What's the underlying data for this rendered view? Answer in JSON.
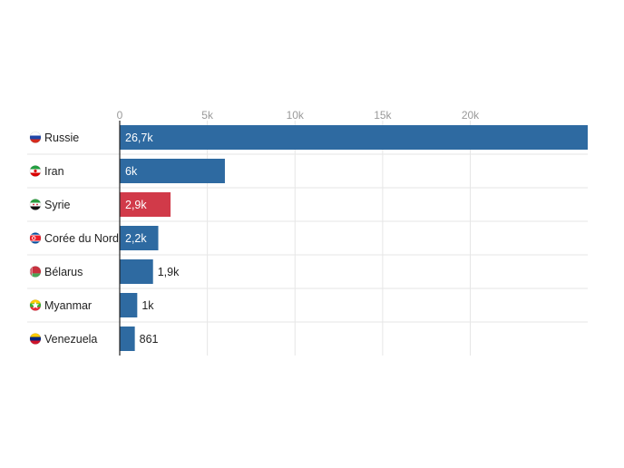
{
  "chart_data": {
    "type": "bar",
    "orientation": "horizontal",
    "title": "",
    "xlabel": "",
    "ylabel": "",
    "xlim": [
      0,
      26700
    ],
    "ticks": [
      {
        "value": 0,
        "label": "0"
      },
      {
        "value": 5000,
        "label": "5k"
      },
      {
        "value": 10000,
        "label": "10k"
      },
      {
        "value": 15000,
        "label": "15k"
      },
      {
        "value": 20000,
        "label": "20k"
      }
    ],
    "grid": true,
    "categories": [
      "Russie",
      "Iran",
      "Syrie",
      "Corée du Nord",
      "Bélarus",
      "Myanmar",
      "Venezuela"
    ],
    "values": [
      26700,
      6000,
      2900,
      2200,
      1900,
      1000,
      861
    ],
    "data_labels": [
      "26,7k",
      "6k",
      "2,9k",
      "2,2k",
      "1,9k",
      "1k",
      "861"
    ],
    "bar_colors": [
      "#2e6aa1",
      "#2e6aa1",
      "#d13a49",
      "#2e6aa1",
      "#2e6aa1",
      "#2e6aa1",
      "#2e6aa1"
    ],
    "flag_icons": [
      "russia-flag-icon",
      "iran-flag-icon",
      "syria-flag-icon",
      "north-korea-flag-icon",
      "belarus-flag-icon",
      "myanmar-flag-icon",
      "venezuela-flag-icon"
    ]
  }
}
